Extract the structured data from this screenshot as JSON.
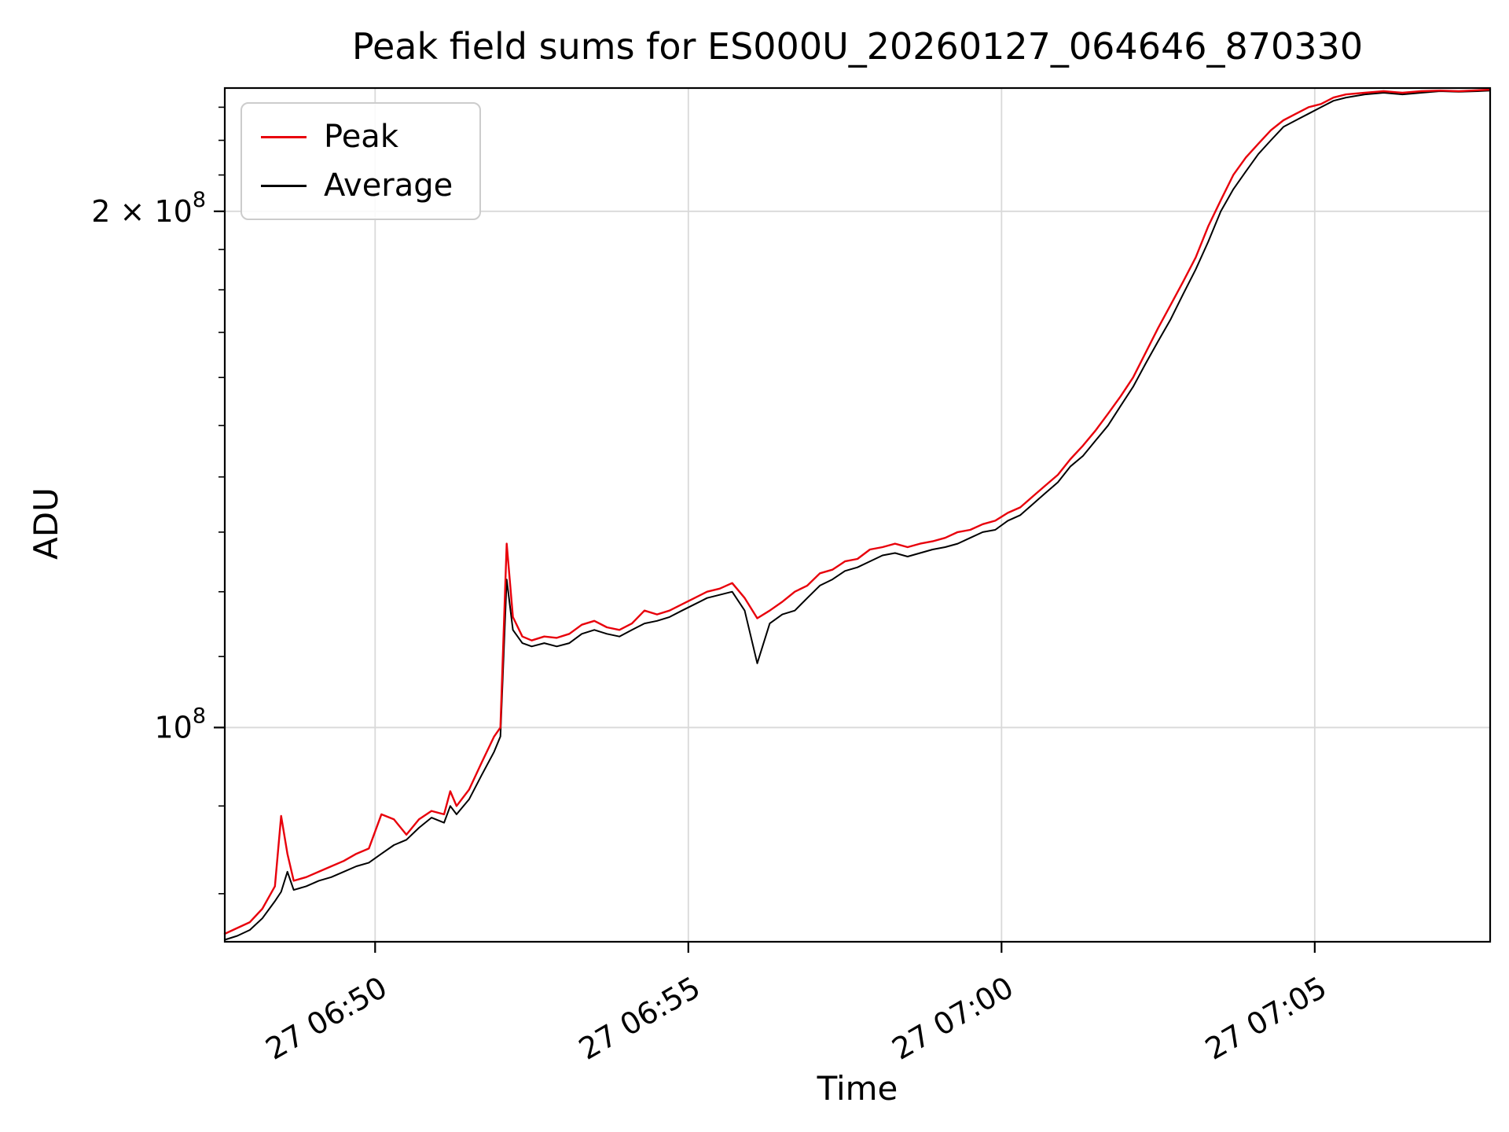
{
  "page": {
    "background": "#ffffff"
  },
  "colors": {
    "grid": "#d9d9d9",
    "spine": "#000000",
    "tick_label": "#000000"
  },
  "chart_data": {
    "type": "line",
    "title": "Peak field sums for ES000U_20260127_064646_870330",
    "xlabel": "Time",
    "ylabel": "ADU",
    "yscale": "log",
    "grid": true,
    "legend_position": "upper left",
    "x_unit": "minutes after 06:00 (day 27)",
    "xlim": [
      47.6,
      67.8
    ],
    "ylim": [
      75000000.0,
      236000000.0
    ],
    "xticks": {
      "values": [
        50,
        55,
        60,
        65
      ],
      "labels": [
        "27 06:50",
        "27 06:55",
        "27 07:00",
        "27 07:05"
      ]
    },
    "yticks": {
      "values": [
        100000000.0,
        200000000.0
      ],
      "labels": [
        "10^8",
        "2 × 10^8"
      ]
    },
    "yminorticks": [
      80000000.0,
      90000000.0,
      110000000.0,
      120000000.0,
      130000000.0,
      140000000.0,
      150000000.0,
      160000000.0,
      170000000.0,
      180000000.0,
      190000000.0,
      210000000.0,
      220000000.0,
      230000000.0
    ],
    "x": [
      47.6,
      47.8,
      48.0,
      48.2,
      48.4,
      48.5,
      48.6,
      48.7,
      48.9,
      49.1,
      49.3,
      49.5,
      49.7,
      49.9,
      50.1,
      50.3,
      50.5,
      50.7,
      50.9,
      51.1,
      51.2,
      51.3,
      51.5,
      51.7,
      51.9,
      52.0,
      52.1,
      52.2,
      52.35,
      52.5,
      52.7,
      52.9,
      53.1,
      53.3,
      53.5,
      53.7,
      53.9,
      54.1,
      54.3,
      54.5,
      54.7,
      54.9,
      55.1,
      55.3,
      55.5,
      55.7,
      55.9,
      56.1,
      56.3,
      56.5,
      56.7,
      56.9,
      57.1,
      57.3,
      57.5,
      57.7,
      57.9,
      58.1,
      58.3,
      58.5,
      58.7,
      58.9,
      59.1,
      59.3,
      59.5,
      59.7,
      59.9,
      60.1,
      60.3,
      60.5,
      60.7,
      60.9,
      61.1,
      61.3,
      61.5,
      61.7,
      61.9,
      62.1,
      62.3,
      62.5,
      62.7,
      62.9,
      63.1,
      63.3,
      63.5,
      63.7,
      63.9,
      64.1,
      64.3,
      64.5,
      64.7,
      64.9,
      65.1,
      65.3,
      65.5,
      65.8,
      66.1,
      66.4,
      66.7,
      67.0,
      67.3,
      67.6,
      67.8
    ],
    "series": [
      {
        "name": "Peak",
        "color": "#e8000b",
        "linewidth": 2.4,
        "values": [
          75800000.0,
          76400000.0,
          77000000.0,
          78400000.0,
          80800000.0,
          88800000.0,
          84400000.0,
          81400000.0,
          81800000.0,
          82400000.0,
          83000000.0,
          83600000.0,
          84400000.0,
          85000000.0,
          89000000.0,
          88400000.0,
          86600000.0,
          88400000.0,
          89400000.0,
          89000000.0,
          91800000.0,
          90000000.0,
          92000000.0,
          95400000.0,
          98800000.0,
          100000000.0,
          128000000.0,
          116000000.0,
          113000000.0,
          112400000.0,
          113000000.0,
          112800000.0,
          113400000.0,
          114800000.0,
          115400000.0,
          114400000.0,
          114000000.0,
          115000000.0,
          117000000.0,
          116400000.0,
          117000000.0,
          118000000.0,
          119000000.0,
          120000000.0,
          120500000.0,
          121400000.0,
          119000000.0,
          115800000.0,
          117000000.0,
          118400000.0,
          120000000.0,
          121000000.0,
          123000000.0,
          123600000.0,
          125000000.0,
          125400000.0,
          127000000.0,
          127400000.0,
          128000000.0,
          127400000.0,
          128000000.0,
          128400000.0,
          129000000.0,
          130000000.0,
          130400000.0,
          131400000.0,
          132000000.0,
          133400000.0,
          134400000.0,
          136400000.0,
          138400000.0,
          140400000.0,
          143400000.0,
          146000000.0,
          149000000.0,
          152400000.0,
          156000000.0,
          160000000.0,
          165400000.0,
          171000000.0,
          176400000.0,
          182000000.0,
          188000000.0,
          196000000.0,
          203000000.0,
          210000000.0,
          215000000.0,
          219000000.0,
          223000000.0,
          226000000.0,
          228000000.0,
          230000000.0,
          231000000.0,
          233000000.0,
          234000000.0,
          234500000.0,
          235000000.0,
          234500000.0,
          235000000.0,
          235200000.0,
          235000000.0,
          235300000.0,
          235500000.0
        ]
      },
      {
        "name": "Average",
        "color": "#000000",
        "linewidth": 2.0,
        "values": [
          75200000.0,
          75600000.0,
          76200000.0,
          77400000.0,
          79200000.0,
          80200000.0,
          82400000.0,
          80400000.0,
          80800000.0,
          81400000.0,
          81800000.0,
          82400000.0,
          83000000.0,
          83400000.0,
          84400000.0,
          85400000.0,
          86000000.0,
          87400000.0,
          88600000.0,
          88000000.0,
          90000000.0,
          89000000.0,
          90800000.0,
          93800000.0,
          96800000.0,
          98800000.0,
          122000000.0,
          114000000.0,
          112000000.0,
          111500000.0,
          112000000.0,
          111500000.0,
          112000000.0,
          113400000.0,
          114000000.0,
          113400000.0,
          113000000.0,
          114000000.0,
          115000000.0,
          115400000.0,
          116000000.0,
          117000000.0,
          118000000.0,
          119000000.0,
          119500000.0,
          120000000.0,
          117000000.0,
          109000000.0,
          115000000.0,
          116400000.0,
          117000000.0,
          119000000.0,
          121000000.0,
          122000000.0,
          123400000.0,
          124000000.0,
          125000000.0,
          126000000.0,
          126400000.0,
          125800000.0,
          126400000.0,
          127000000.0,
          127400000.0,
          128000000.0,
          129000000.0,
          130000000.0,
          130400000.0,
          132000000.0,
          133000000.0,
          135000000.0,
          137000000.0,
          139000000.0,
          142000000.0,
          144000000.0,
          147000000.0,
          150000000.0,
          154000000.0,
          158000000.0,
          163000000.0,
          168000000.0,
          173000000.0,
          179000000.0,
          185000000.0,
          192000000.0,
          200000000.0,
          206000000.0,
          211000000.0,
          216000000.0,
          220000000.0,
          224000000.0,
          226000000.0,
          228000000.0,
          230000000.0,
          232000000.0,
          233000000.0,
          234000000.0,
          234500000.0,
          234000000.0,
          234500000.0,
          235000000.0,
          234800000.0,
          235000000.0,
          235200000.0
        ]
      }
    ]
  }
}
